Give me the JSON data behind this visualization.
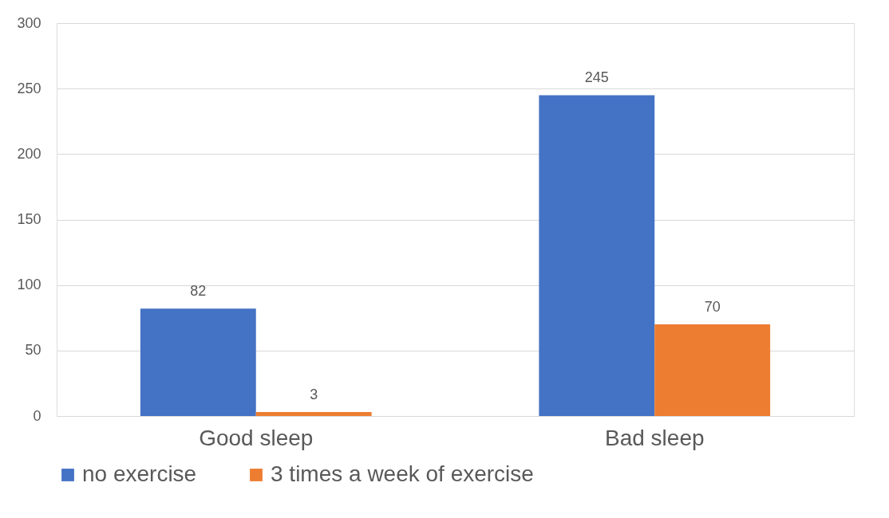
{
  "chart_data": {
    "type": "bar",
    "categories": [
      "Good sleep",
      "Bad sleep"
    ],
    "series": [
      {
        "name": "no exercise",
        "color": "#4472c4",
        "values": [
          82,
          245
        ]
      },
      {
        "name": "3 times a week of exercise",
        "color": "#ed7d31",
        "values": [
          3,
          70
        ]
      }
    ],
    "ylim": [
      0,
      300
    ],
    "yticks": [
      0,
      50,
      100,
      150,
      200,
      250,
      300
    ],
    "grid": "y",
    "data_labels": true,
    "legend": "bottom"
  }
}
